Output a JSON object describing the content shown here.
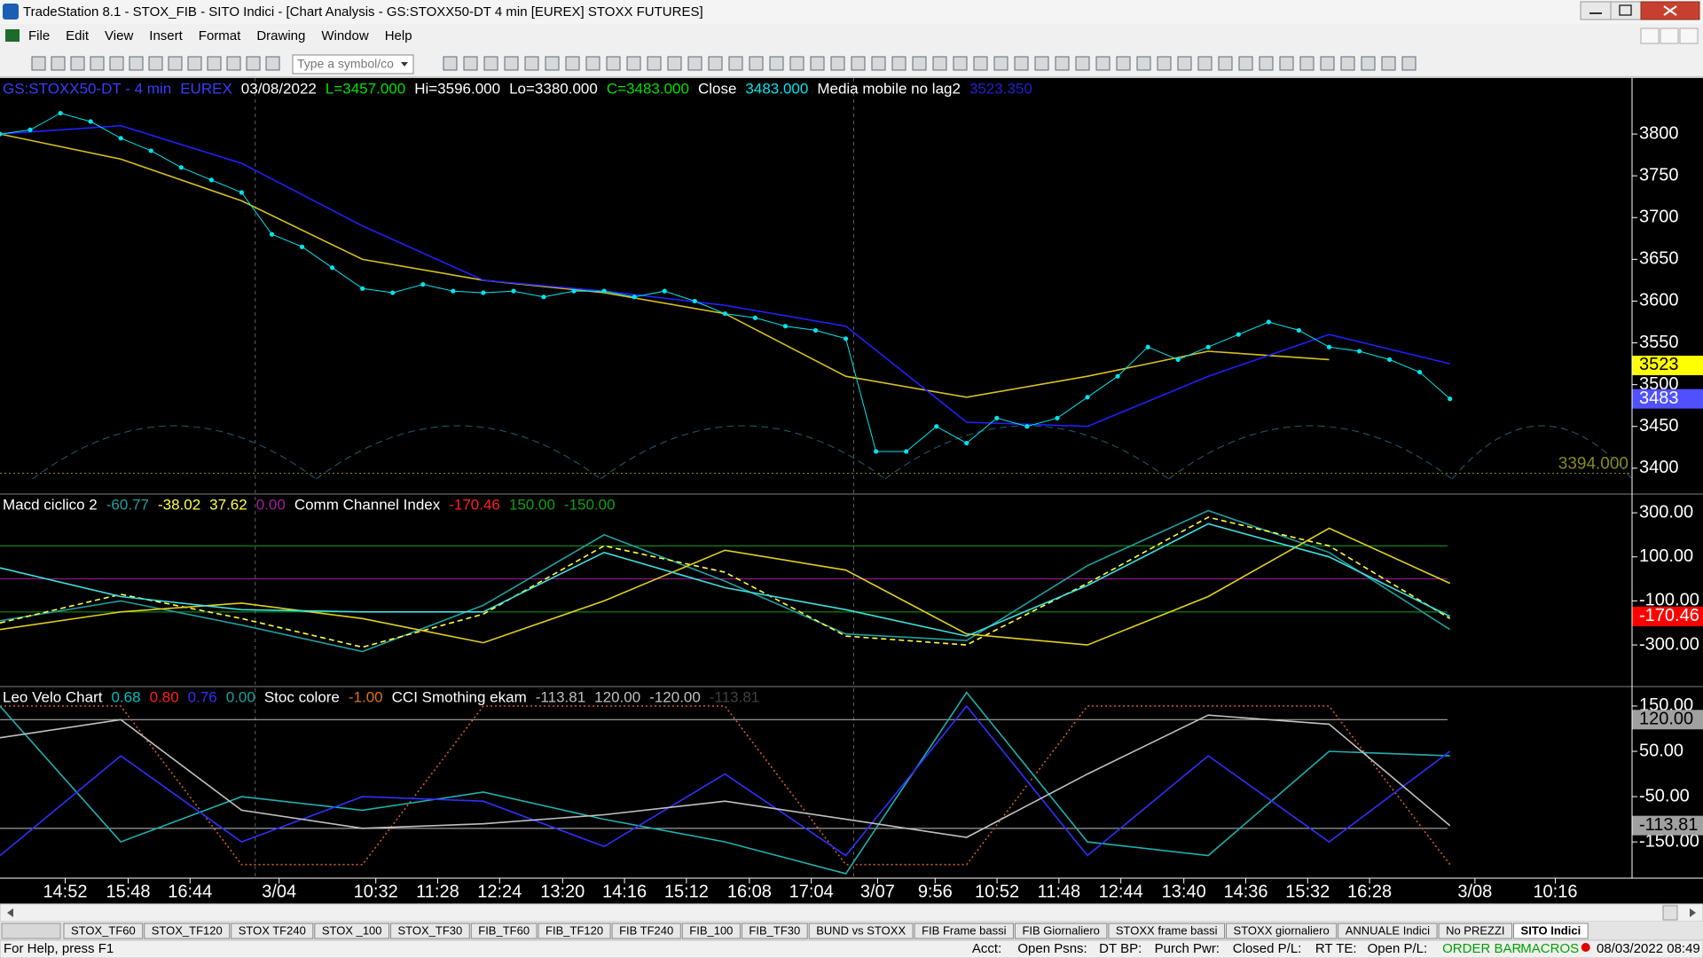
{
  "window": {
    "title": "TradeStation 8.1 - STOX_FIB - SITO Indici - [Chart Analysis - GS:STOXX50-DT  4 min  [EUREX] STOXX FUTURES]"
  },
  "menu": [
    "File",
    "Edit",
    "View",
    "Insert",
    "Format",
    "Drawing",
    "Window",
    "Help"
  ],
  "toolbar": {
    "symbol_box": "Type a symbol/co"
  },
  "chart_data": [
    {
      "type": "line",
      "legend": [
        {
          "text": "GS:STOXX50-DT - 4 min",
          "color": "#3c3cff"
        },
        {
          "text": "EUREX",
          "color": "#3c3cff"
        },
        {
          "text": "03/08/2022",
          "color": "#ffffff"
        },
        {
          "text": "L=3457.000",
          "color": "#00e000"
        },
        {
          "text": "Hi=3596.000",
          "color": "#ffffff"
        },
        {
          "text": "Lo=3380.000",
          "color": "#ffffff"
        },
        {
          "text": "C=3483.000",
          "color": "#00e000"
        },
        {
          "text": "Close",
          "color": "#ffffff"
        },
        {
          "value": 3483,
          "label": "3483.000",
          "color": "#00e5ee"
        },
        {
          "text": "Media mobile no lag2",
          "color": "#ffffff"
        },
        {
          "value": 3523.35,
          "label": "3523.350",
          "color": "#2020d0"
        }
      ],
      "ylim": [
        3369,
        3867
      ],
      "yticks": [
        3800,
        3750,
        3700,
        3650,
        3600,
        3550,
        3500,
        3450,
        3400
      ],
      "series": [
        {
          "color": "#d8c020",
          "style": "solid",
          "values": [
            3800,
            3770,
            3720,
            3650,
            3625,
            3610,
            3585,
            3510,
            3485,
            3510,
            3540,
            3530,
            null
          ]
        },
        {
          "color": "#2020ff",
          "style": "solid",
          "values": [
            3800,
            3810,
            3765,
            3690,
            3625,
            3612,
            3595,
            3570,
            3455,
            3450,
            3510,
            3560,
            3525
          ]
        },
        {
          "color": "#00e5ee",
          "style": "dots",
          "values": [
            3800,
            3805,
            3825,
            3815,
            3795,
            3780,
            3760,
            3745,
            3730,
            3680,
            3665,
            3640,
            3615,
            3610,
            3620,
            3612,
            3610,
            3612,
            3605,
            3612,
            3612,
            3605,
            3612,
            3600,
            3585,
            3580,
            3570,
            3565,
            3555,
            3420,
            3420,
            3450,
            3430,
            3460,
            3450,
            3460,
            3485,
            3510,
            3545,
            3530,
            3545,
            3560,
            3575,
            3565,
            3545,
            3540,
            3530,
            3515,
            3483
          ]
        }
      ],
      "markers": [
        {
          "value": 3523,
          "label": "3523",
          "color": "#ffff00",
          "text_color": "#000000"
        },
        {
          "value": 3483,
          "label": "3483",
          "color": "#5050ff",
          "text_color": "#ffffff"
        }
      ],
      "reference": {
        "value": 3394,
        "label": "3394.000",
        "color": "#8a8a20"
      }
    },
    {
      "type": "line",
      "legend": [
        {
          "text": "Macd ciclico 2",
          "color": "#ffffff"
        },
        {
          "value": -60.77,
          "label": "-60.77",
          "color": "#20a0a0"
        },
        {
          "value": -38.02,
          "label": "-38.02",
          "color": "#ffff40"
        },
        {
          "value": 37.62,
          "label": "37.62",
          "color": "#ffff40"
        },
        {
          "value": 0,
          "label": "0.00",
          "color": "#a020a0",
          "level": true
        },
        {
          "text": "Comm Channel Index",
          "color": "#ffffff"
        },
        {
          "value": -170.46,
          "label": "-170.46",
          "color": "#ff2020"
        },
        {
          "value": 150,
          "label": "150.00",
          "color": "#10a010",
          "level": true
        },
        {
          "value": -150,
          "label": "-150.00",
          "color": "#10a010",
          "level": true
        }
      ],
      "ylim": [
        -489,
        385
      ],
      "yticks": [
        {
          "value": 300,
          "label": "300.00"
        },
        {
          "value": 100,
          "label": "100.00"
        },
        {
          "value": -100,
          "label": "-100.00"
        },
        {
          "value": -300,
          "label": "-300.00"
        }
      ],
      "series": [
        {
          "color": "#20a0a0",
          "style": "solid",
          "values": [
            -190,
            -100,
            -210,
            -330,
            -120,
            200,
            -10,
            -250,
            -280,
            60,
            310,
            120,
            -230
          ]
        },
        {
          "color": "#ffff40",
          "style": "dashed",
          "values": [
            -200,
            -70,
            -180,
            -310,
            -160,
            150,
            30,
            -260,
            -300,
            -20,
            280,
            150,
            -180
          ]
        },
        {
          "color": "#e0d020",
          "style": "solid",
          "values": [
            -230,
            -150,
            -110,
            -180,
            -290,
            -100,
            130,
            40,
            -250,
            -300,
            -80,
            230,
            -20
          ]
        },
        {
          "color": "#40e0e0",
          "style": "solid",
          "values": [
            50,
            -80,
            -140,
            -150,
            -150,
            120,
            -40,
            -140,
            -260,
            -30,
            250,
            100,
            -170.46
          ]
        }
      ],
      "markers": [
        {
          "value": -170.46,
          "label": "-170.46",
          "color": "#ff0000",
          "text_color": "#ffffff"
        }
      ]
    },
    {
      "type": "line",
      "legend": [
        {
          "text": "Leo Velo Chart",
          "color": "#ffffff"
        },
        {
          "value": 0.68,
          "label": "0.68",
          "color": "#00c0c0"
        },
        {
          "value": 0.8,
          "label": "0.80",
          "color": "#ff2020"
        },
        {
          "value": 0.76,
          "label": "0.76",
          "color": "#3030ff"
        },
        {
          "value": 0,
          "label": "0.00",
          "color": "#20a0a0"
        },
        {
          "text": "Stoc colore",
          "color": "#ffffff"
        },
        {
          "value": -1,
          "label": "-1.00",
          "color": "#e07020"
        },
        {
          "text": "CCI Smothing ekam",
          "color": "#ffffff"
        },
        {
          "value": -113.81,
          "label": "-113.81",
          "color": "#c0c0c0"
        },
        {
          "value": 120,
          "label": "120.00",
          "color": "#c0c0c0",
          "level": true
        },
        {
          "value": -120,
          "label": "-120.00",
          "color": "#c0c0c0",
          "level": true
        },
        {
          "value": -113.81,
          "label": "-113.81",
          "color": "#404040"
        }
      ],
      "ylim": [
        -230,
        193
      ],
      "yticks": [
        {
          "value": 150,
          "label": "150.00"
        },
        {
          "value": 50,
          "label": "50.00"
        },
        {
          "value": -50,
          "label": "-50.00"
        },
        {
          "value": -150,
          "label": "-150.00"
        }
      ],
      "series": [
        {
          "color": "#d06020",
          "style": "dotted",
          "values": [
            150,
            150,
            -200,
            -200,
            150,
            150,
            150,
            -200,
            -200,
            150,
            150,
            150,
            -200
          ]
        },
        {
          "color": "#20b0b0",
          "style": "solid",
          "values": [
            150,
            -150,
            -50,
            -80,
            -40,
            -100,
            -150,
            -220,
            180,
            -150,
            -180,
            50,
            40
          ]
        },
        {
          "color": "#3030ff",
          "style": "solid",
          "values": [
            -180,
            40,
            -150,
            -50,
            -60,
            -160,
            0,
            -180,
            150,
            -180,
            40,
            -150,
            50
          ]
        },
        {
          "color": "#c0c0c0",
          "style": "solid",
          "values": [
            80,
            120,
            -80,
            -120,
            -110,
            -90,
            -60,
            -100,
            -140,
            0,
            130,
            110,
            -113.81
          ]
        }
      ],
      "markers": [
        {
          "value": 120,
          "label": "120.00",
          "color": "#a0a0a0",
          "text_color": "#000000"
        },
        {
          "value": -113.81,
          "label": "-113.81",
          "color": "#a0a0a0",
          "text_color": "#000000"
        }
      ]
    }
  ],
  "time_axis": [
    "14:52",
    "15:48",
    "16:44",
    "3/04",
    "10:32",
    "11:28",
    "12:24",
    "13:20",
    "14:16",
    "15:12",
    "16:08",
    "17:04",
    "3/07",
    "9:56",
    "10:52",
    "11:48",
    "12:44",
    "13:40",
    "14:36",
    "15:32",
    "16:28",
    "3/08",
    "10:16"
  ],
  "tabs": [
    {
      "label": "STOX_TF60"
    },
    {
      "label": "STOX_TF120"
    },
    {
      "label": "STOX TF240"
    },
    {
      "label": "STOX _100"
    },
    {
      "label": "STOX_TF30"
    },
    {
      "label": "FIB_TF60"
    },
    {
      "label": "FIB_TF120"
    },
    {
      "label": "FIB TF240"
    },
    {
      "label": "FIB_100"
    },
    {
      "label": "FIB_TF30"
    },
    {
      "label": "BUND vs STOXX"
    },
    {
      "label": "FIB Frame bassi"
    },
    {
      "label": "FIB Giornaliero"
    },
    {
      "label": "STOXX frame bassi"
    },
    {
      "label": "STOXX giornaliero"
    },
    {
      "label": "ANNUALE Indici"
    },
    {
      "label": "No PREZZI"
    },
    {
      "label": "SITO Indici",
      "active": true
    }
  ],
  "status_bar": {
    "help": "For Help, press F1",
    "fields": [
      "Acct:",
      "Open Psns:",
      "DT BP:",
      "Purch Pwr:",
      "Closed P/L:",
      "RT TE:",
      "Open P/L:"
    ],
    "order_bar": "ORDER BAR",
    "macros": "MACROS",
    "datetime": "08/03/2022 08:49"
  }
}
